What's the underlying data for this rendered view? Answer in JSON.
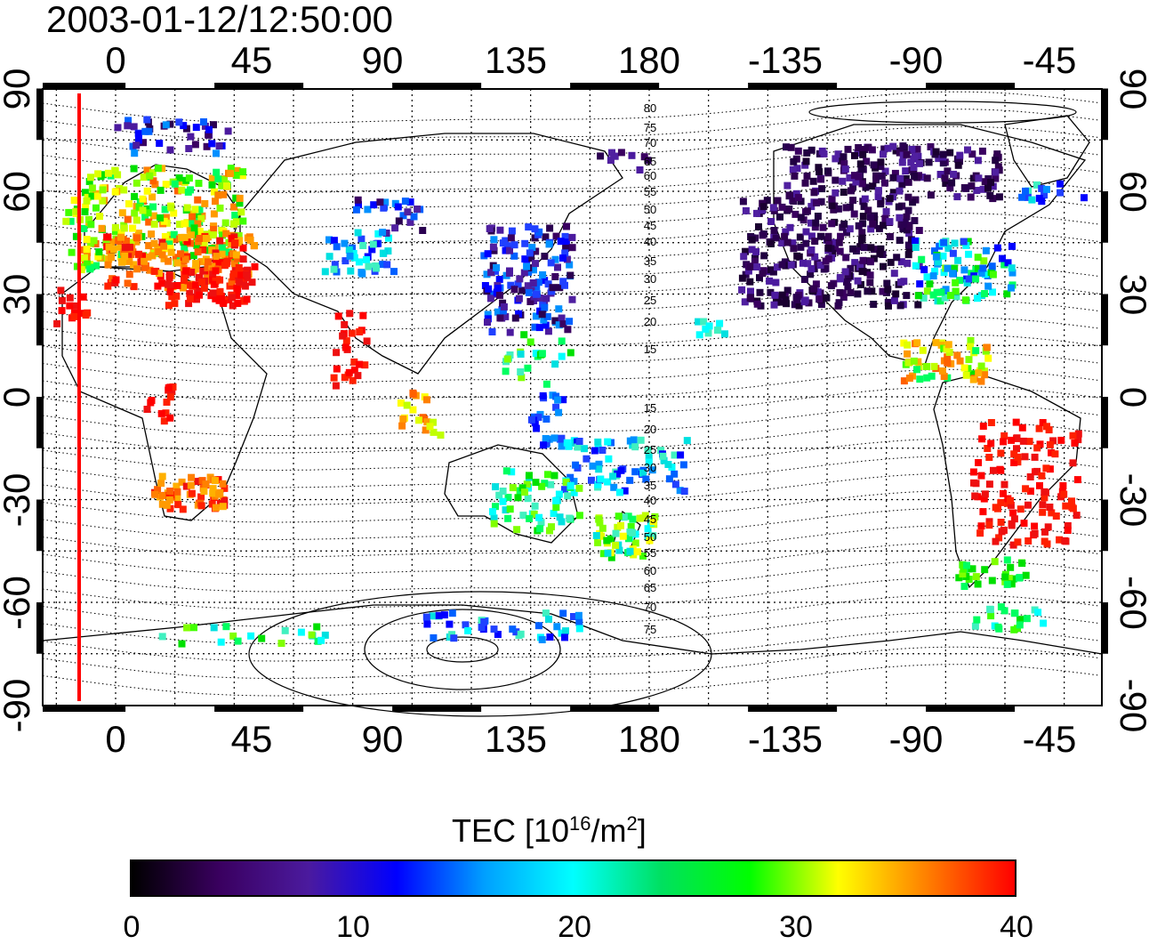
{
  "title": "2003-01-12/12:50:00",
  "map": {
    "lon_ticks": [
      "0",
      "45",
      "90",
      "135",
      "180",
      "-135",
      "-90",
      "-45"
    ],
    "lat_ticks": [
      "90",
      "60",
      "30",
      "0",
      "-30",
      "-60",
      "-90"
    ],
    "contour_labels": [
      "80",
      "75",
      "70",
      "65",
      "60",
      "55",
      "50",
      "45",
      "40",
      "35",
      "30",
      "25",
      "20",
      "15",
      "15",
      "20",
      "25",
      "30",
      "35",
      "40",
      "45",
      "50",
      "55",
      "60",
      "65",
      "70",
      "75"
    ],
    "marker_color": "#ff0000",
    "grid": true
  },
  "colorbar": {
    "title_prefix": "TEC  [10",
    "title_sup1": "16",
    "title_mid": "/m",
    "title_sup2": "2",
    "title_suffix": "]",
    "ticks": [
      "0",
      "10",
      "20",
      "30",
      "40"
    ],
    "range": [
      0,
      40
    ],
    "colormap": [
      "#000000",
      "#3a0060",
      "#4b1a9e",
      "#0000ff",
      "#00a0ff",
      "#00ffff",
      "#00e060",
      "#00ff00",
      "#ffff00",
      "#ff8000",
      "#ff0000"
    ]
  }
}
